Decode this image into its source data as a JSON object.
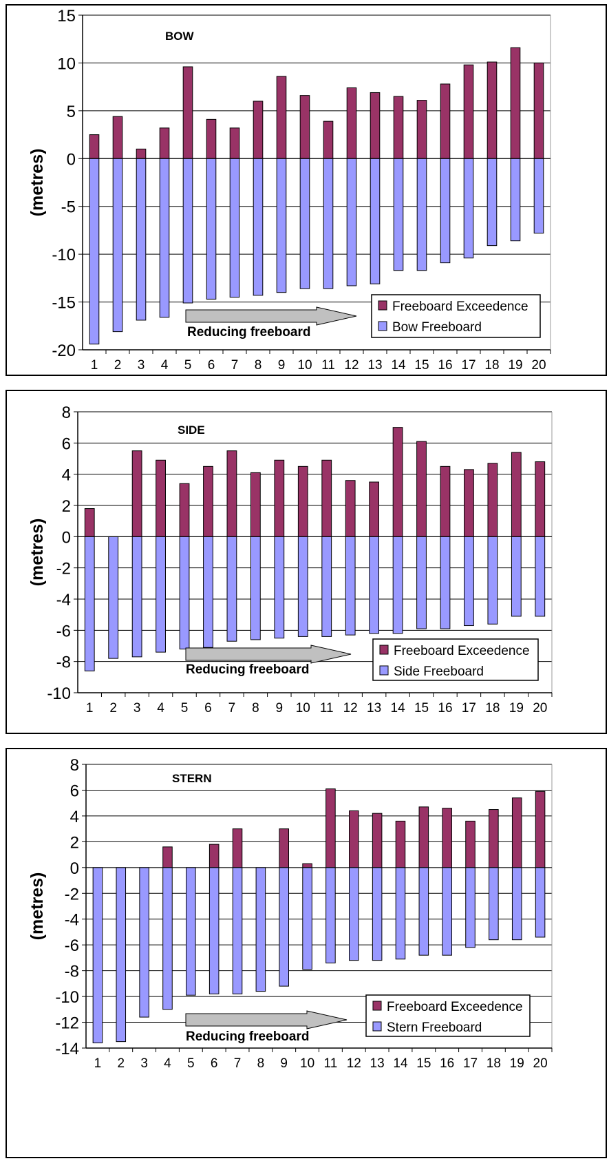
{
  "chart_data": [
    {
      "type": "bar",
      "stacked": true,
      "title": "BOW",
      "ylabel": "(metres)",
      "annotation": "Reducing freeboard",
      "categories": [
        "1",
        "2",
        "3",
        "4",
        "5",
        "6",
        "7",
        "8",
        "9",
        "10",
        "11",
        "12",
        "13",
        "14",
        "15",
        "16",
        "17",
        "18",
        "19",
        "20"
      ],
      "yticks": [
        15,
        10,
        5,
        0,
        -5,
        -10,
        -15,
        -20
      ],
      "ylim": [
        -20,
        15
      ],
      "series": [
        {
          "name": "Freeboard Exceedence",
          "color": "#993366",
          "values": [
            2.5,
            4.4,
            1.0,
            3.2,
            9.6,
            4.1,
            3.2,
            6.0,
            8.6,
            6.6,
            3.9,
            7.4,
            6.9,
            6.5,
            6.1,
            7.8,
            9.8,
            10.1,
            11.6,
            10.0
          ]
        },
        {
          "name": "Bow Freeboard",
          "color": "#9999ff",
          "values": [
            -19.4,
            -18.1,
            -16.9,
            -16.6,
            -15.1,
            -14.7,
            -14.5,
            -14.3,
            -14.0,
            -13.6,
            -13.6,
            -13.3,
            -13.1,
            -11.7,
            -11.7,
            -10.9,
            -10.4,
            -9.1,
            -8.6,
            -7.8
          ]
        }
      ]
    },
    {
      "type": "bar",
      "stacked": true,
      "title": "SIDE",
      "ylabel": "(metres)",
      "annotation": "Reducing freeboard",
      "categories": [
        "1",
        "2",
        "3",
        "4",
        "5",
        "6",
        "7",
        "8",
        "9",
        "10",
        "11",
        "12",
        "13",
        "14",
        "15",
        "16",
        "17",
        "18",
        "19",
        "20"
      ],
      "yticks": [
        8,
        6,
        4,
        2,
        0,
        -2,
        -4,
        -6,
        -8,
        -10
      ],
      "ylim": [
        -10,
        8
      ],
      "series": [
        {
          "name": "Freeboard Exceedence",
          "color": "#993366",
          "values": [
            1.8,
            0,
            5.5,
            4.9,
            3.4,
            4.5,
            5.5,
            4.1,
            4.9,
            4.5,
            4.9,
            3.6,
            3.5,
            7.0,
            6.1,
            4.5,
            4.3,
            4.7,
            5.4,
            4.8
          ]
        },
        {
          "name": "Side Freeboard",
          "color": "#9999ff",
          "values": [
            -8.6,
            -7.8,
            -7.7,
            -7.4,
            -7.2,
            -7.1,
            -6.7,
            -6.6,
            -6.5,
            -6.4,
            -6.4,
            -6.3,
            -6.2,
            -6.2,
            -5.9,
            -5.9,
            -5.7,
            -5.6,
            -5.1,
            -5.1
          ]
        }
      ]
    },
    {
      "type": "bar",
      "stacked": true,
      "title": "STERN",
      "ylabel": "(metres)",
      "annotation": "Reducing freeboard",
      "categories": [
        "1",
        "2",
        "3",
        "4",
        "5",
        "6",
        "7",
        "8",
        "9",
        "10",
        "11",
        "12",
        "13",
        "14",
        "15",
        "16",
        "17",
        "18",
        "19",
        "20"
      ],
      "yticks": [
        8,
        6,
        4,
        2,
        0,
        -2,
        -4,
        -6,
        -8,
        -10,
        -12,
        -14
      ],
      "ylim": [
        -14,
        8
      ],
      "series": [
        {
          "name": "Freeboard Exceedence",
          "color": "#993366",
          "values": [
            0,
            0,
            0,
            1.6,
            0,
            1.8,
            3.0,
            0,
            3.0,
            0.3,
            6.1,
            4.4,
            4.2,
            3.6,
            4.7,
            4.6,
            3.6,
            4.5,
            5.4,
            5.9
          ]
        },
        {
          "name": "Stern Freeboard",
          "color": "#9999ff",
          "values": [
            -13.6,
            -13.5,
            -11.6,
            -11.0,
            -9.9,
            -9.8,
            -9.8,
            -9.6,
            -9.2,
            -7.9,
            -7.4,
            -7.2,
            -7.2,
            -7.1,
            -6.8,
            -6.8,
            -6.2,
            -5.6,
            -5.6,
            -5.4
          ]
        }
      ]
    }
  ]
}
